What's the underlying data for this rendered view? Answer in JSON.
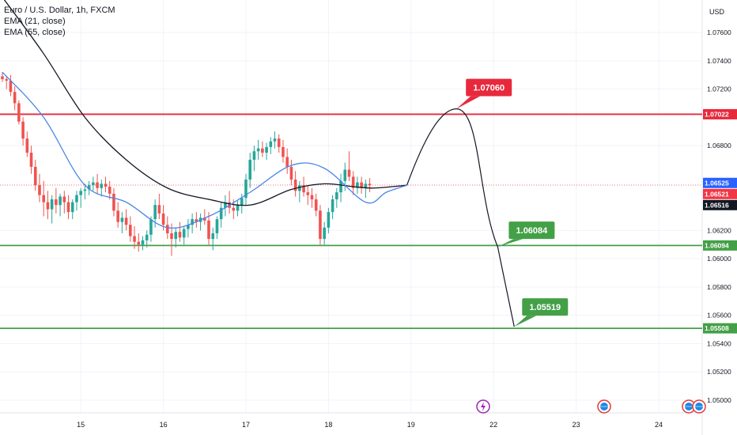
{
  "legend": {
    "symbol": "Euro / U.S. Dollar, 1h, FXCM",
    "ema21": "EMA (21, close)",
    "ema55": "EMA (55, close)"
  },
  "axis": {
    "currency": "USD"
  },
  "colors": {
    "up": "#26a69a",
    "down": "#ef5350",
    "ema21": "#4a86e8",
    "ema55": "#131722",
    "resistance": "#e8293c",
    "support": "#43a047"
  },
  "chart_data": {
    "type": "candlestick",
    "ylim": [
      1.0491,
      1.0783
    ],
    "y_ticks": [
      "1.07600",
      "1.07400",
      "1.07200",
      "1.06800",
      "1.06200",
      "1.06000",
      "1.05800",
      "1.05600",
      "1.05400",
      "1.05200",
      "1.05000"
    ],
    "x_ticks": [
      "15",
      "16",
      "17",
      "18",
      "19",
      "22",
      "23",
      "24"
    ],
    "x_tick_index": [
      19,
      39,
      59,
      79,
      99,
      119,
      139,
      159
    ],
    "candles": [
      [
        1.0729,
        1.0732,
        1.0725,
        1.0727
      ],
      [
        1.0727,
        1.0729,
        1.072,
        1.0726
      ],
      [
        1.0726,
        1.073,
        1.0715,
        1.0718
      ],
      [
        1.0718,
        1.0722,
        1.0705,
        1.071
      ],
      [
        1.071,
        1.0712,
        1.0695,
        1.0697
      ],
      [
        1.0697,
        1.07,
        1.068,
        1.0685
      ],
      [
        1.0685,
        1.069,
        1.0672,
        1.0675
      ],
      [
        1.0675,
        1.068,
        1.066,
        1.0665
      ],
      [
        1.0665,
        1.067,
        1.0648,
        1.0652
      ],
      [
        1.0652,
        1.066,
        1.064,
        1.0645
      ],
      [
        1.0645,
        1.0655,
        1.063,
        1.064
      ],
      [
        1.064,
        1.0648,
        1.0628,
        1.0635
      ],
      [
        1.0635,
        1.0645,
        1.0625,
        1.0642
      ],
      [
        1.0642,
        1.065,
        1.0632,
        1.0638
      ],
      [
        1.0638,
        1.0646,
        1.063,
        1.0644
      ],
      [
        1.0644,
        1.0648,
        1.0632,
        1.064
      ],
      [
        1.064,
        1.0645,
        1.0628,
        1.0633
      ],
      [
        1.0633,
        1.0642,
        1.0628,
        1.064
      ],
      [
        1.064,
        1.0648,
        1.0634,
        1.0645
      ],
      [
        1.0645,
        1.065,
        1.0636,
        1.0648
      ],
      [
        1.0648,
        1.0653,
        1.0642,
        1.0649
      ],
      [
        1.0649,
        1.0655,
        1.0645,
        1.0652
      ],
      [
        1.0652,
        1.0658,
        1.0648,
        1.0654
      ],
      [
        1.0654,
        1.066,
        1.0646,
        1.065
      ],
      [
        1.065,
        1.0656,
        1.0644,
        1.0653
      ],
      [
        1.0653,
        1.0658,
        1.0647,
        1.0651
      ],
      [
        1.0651,
        1.0655,
        1.0642,
        1.0646
      ],
      [
        1.0646,
        1.065,
        1.063,
        1.0634
      ],
      [
        1.0634,
        1.064,
        1.0622,
        1.0626
      ],
      [
        1.0626,
        1.0633,
        1.0618,
        1.0629
      ],
      [
        1.0629,
        1.0635,
        1.062,
        1.0624
      ],
      [
        1.0624,
        1.063,
        1.0612,
        1.0616
      ],
      [
        1.0616,
        1.0623,
        1.0607,
        1.0612
      ],
      [
        1.0612,
        1.0618,
        1.0605,
        1.061
      ],
      [
        1.061,
        1.0616,
        1.0606,
        1.0613
      ],
      [
        1.0613,
        1.062,
        1.0608,
        1.0617
      ],
      [
        1.0617,
        1.063,
        1.0612,
        1.0628
      ],
      [
        1.0628,
        1.0642,
        1.0622,
        1.0638
      ],
      [
        1.0638,
        1.0646,
        1.0628,
        1.0632
      ],
      [
        1.0632,
        1.0638,
        1.062,
        1.0624
      ],
      [
        1.0624,
        1.063,
        1.0614,
        1.0618
      ],
      [
        1.0618,
        1.0625,
        1.0602,
        1.0614
      ],
      [
        1.0614,
        1.0622,
        1.0608,
        1.0619
      ],
      [
        1.0619,
        1.0626,
        1.0612,
        1.0615
      ],
      [
        1.0615,
        1.0623,
        1.061,
        1.0621
      ],
      [
        1.0621,
        1.0628,
        1.0615,
        1.0624
      ],
      [
        1.0624,
        1.0632,
        1.0618,
        1.0628
      ],
      [
        1.0628,
        1.0633,
        1.0622,
        1.0626
      ],
      [
        1.0626,
        1.0632,
        1.062,
        1.0629
      ],
      [
        1.0629,
        1.0635,
        1.0624,
        1.0627
      ],
      [
        1.0627,
        1.0633,
        1.061,
        1.0614
      ],
      [
        1.0614,
        1.0622,
        1.0606,
        1.0618
      ],
      [
        1.0618,
        1.063,
        1.0614,
        1.0628
      ],
      [
        1.0628,
        1.064,
        1.0622,
        1.0636
      ],
      [
        1.0636,
        1.0645,
        1.063,
        1.064
      ],
      [
        1.064,
        1.0648,
        1.0632,
        1.0636
      ],
      [
        1.0636,
        1.0642,
        1.0628,
        1.0634
      ],
      [
        1.0634,
        1.0641,
        1.063,
        1.0638
      ],
      [
        1.0638,
        1.0646,
        1.0632,
        1.0643
      ],
      [
        1.0643,
        1.066,
        1.0638,
        1.0656
      ],
      [
        1.0656,
        1.0675,
        1.065,
        1.067
      ],
      [
        1.067,
        1.068,
        1.0662,
        1.0676
      ],
      [
        1.0676,
        1.0684,
        1.067,
        1.0678
      ],
      [
        1.0678,
        1.0683,
        1.0672,
        1.0675
      ],
      [
        1.0675,
        1.0682,
        1.067,
        1.0679
      ],
      [
        1.0679,
        1.0686,
        1.0674,
        1.0683
      ],
      [
        1.0683,
        1.069,
        1.0678,
        1.0685
      ],
      [
        1.0685,
        1.0688,
        1.0675,
        1.0679
      ],
      [
        1.0679,
        1.0684,
        1.0668,
        1.0672
      ],
      [
        1.0672,
        1.0678,
        1.066,
        1.0665
      ],
      [
        1.0665,
        1.067,
        1.0652,
        1.0656
      ],
      [
        1.0656,
        1.0662,
        1.0644,
        1.0648
      ],
      [
        1.0648,
        1.0655,
        1.064,
        1.0652
      ],
      [
        1.0652,
        1.0658,
        1.0644,
        1.0647
      ],
      [
        1.0647,
        1.0652,
        1.0638,
        1.0645
      ],
      [
        1.0645,
        1.065,
        1.0636,
        1.0642
      ],
      [
        1.0642,
        1.0646,
        1.063,
        1.0634
      ],
      [
        1.0634,
        1.0638,
        1.061,
        1.0614
      ],
      [
        1.0614,
        1.0626,
        1.061,
        1.0622
      ],
      [
        1.0622,
        1.0636,
        1.0618,
        1.0633
      ],
      [
        1.0633,
        1.0645,
        1.0628,
        1.0642
      ],
      [
        1.0642,
        1.065,
        1.0636,
        1.0647
      ],
      [
        1.0647,
        1.066,
        1.064,
        1.0655
      ],
      [
        1.0655,
        1.0668,
        1.0648,
        1.0663
      ],
      [
        1.0663,
        1.0676,
        1.0655,
        1.0658
      ],
      [
        1.0658,
        1.0662,
        1.0645,
        1.065
      ],
      [
        1.065,
        1.0658,
        1.0646,
        1.0654
      ],
      [
        1.0654,
        1.0658,
        1.0646,
        1.065
      ],
      [
        1.065,
        1.0656,
        1.0643,
        1.0653
      ],
      [
        1.0653,
        1.0657,
        1.0647,
        1.0652
      ]
    ],
    "ema21": [
      [
        0,
        1.0732
      ],
      [
        10,
        1.07
      ],
      [
        20,
        1.0652
      ],
      [
        30,
        1.064
      ],
      [
        40,
        1.0622
      ],
      [
        50,
        1.063
      ],
      [
        60,
        1.0647
      ],
      [
        70,
        1.0666
      ],
      [
        78,
        1.0664
      ],
      [
        88,
        1.064
      ],
      [
        93,
        1.0647
      ],
      [
        98,
        1.0652
      ]
    ],
    "ema55": [
      [
        0,
        1.0785
      ],
      [
        10,
        1.0745
      ],
      [
        20,
        1.07
      ],
      [
        30,
        1.067
      ],
      [
        40,
        1.065
      ],
      [
        50,
        1.0642
      ],
      [
        60,
        1.0638
      ],
      [
        70,
        1.0649
      ],
      [
        78,
        1.0653
      ],
      [
        85,
        1.0651
      ],
      [
        90,
        1.065
      ],
      [
        98,
        1.0652
      ]
    ],
    "projection": [
      [
        98,
        1.0652
      ],
      [
        110,
        1.0706
      ],
      [
        120,
        1.06084
      ],
      [
        124,
        1.05519
      ]
    ],
    "levels": [
      {
        "name": "resistance",
        "value": "1.07022",
        "color": "#e8293c"
      },
      {
        "name": "support-1",
        "value": "1.06094",
        "color": "#43a047"
      },
      {
        "name": "support-2",
        "value": "1.05508",
        "color": "#43a047"
      }
    ],
    "callouts": [
      {
        "text": "1.07060",
        "color": "#e8293c",
        "price": 1.0706
      },
      {
        "text": "1.06084",
        "color": "#43a047",
        "price": 1.06084
      },
      {
        "text": "1.05519",
        "color": "#43a047",
        "price": 1.05519
      }
    ],
    "price_tags": [
      {
        "text": "1.06525",
        "color": "#2962ff",
        "price": 1.06525
      },
      {
        "text": "1.06521",
        "color": "#f23645",
        "price": 1.06521
      },
      {
        "text": "1.06516",
        "color": "#131722",
        "price": 1.06516
      }
    ]
  }
}
